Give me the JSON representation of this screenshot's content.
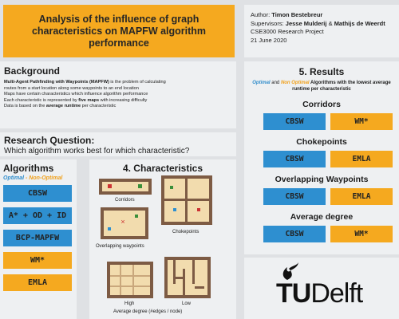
{
  "title": "Analysis of the influence of graph characteristics on MAPFW algorithm performance",
  "author": {
    "author_label": "Author:",
    "author_name": "Timon Bestebreur",
    "supervisors_label": "Supervisors:",
    "supervisor_1": "Jesse Mulderij",
    "amp": "&",
    "supervisor_2": "Mathijs de Weerdt",
    "project": "CSE3000 Research Project",
    "date": "21 June 2020"
  },
  "background": {
    "title": "Background",
    "line1_bold": "Multi-Agent Pathfinding with Waypoints (MAPFW)",
    "line1_rest": " is the problem of calculating",
    "line2": "routes from a start location along some waypoints to an end location",
    "line3": "Maps have certain characteristics which influence algorithm performance",
    "line4_pre": "Each characteristic is represented by ",
    "line4_bold": "five maps",
    "line4_post": " with increasing difficulty",
    "line5_pre": "Data is based on the ",
    "line5_bold": "average runtime",
    "line5_post": " per characteristic"
  },
  "research_question": {
    "title": "Research Question:",
    "question": "Which algorithm works best for which characteristic?"
  },
  "algorithms": {
    "title": "Algorithms",
    "optimal": "Optimal",
    "dash": " - ",
    "non_optimal": "Non-Optimal",
    "items": [
      {
        "label": "CBSW",
        "kind": "optimal"
      },
      {
        "label": "A* + OD + ID",
        "kind": "optimal"
      },
      {
        "label": "BCP-MAPFW",
        "kind": "optimal"
      },
      {
        "label": "WM*",
        "kind": "non-optimal"
      },
      {
        "label": "EMLA",
        "kind": "non-optimal"
      }
    ]
  },
  "characteristics": {
    "title": "4. Characteristics",
    "corridors": "Corridors",
    "chokepoints": "Chokepoints",
    "overlapping": "Overlapping waypoints",
    "high": "High",
    "low": "Low",
    "degree": "Average degree (#edges / node)"
  },
  "results": {
    "title": "5. Results",
    "desc_optimal": "Optimal",
    "desc_and": " and ",
    "desc_non_optimal": "Non Optimal",
    "desc_rest": " Algorithms with the lowest average runtime per characteristic",
    "categories": [
      {
        "name": "Corridors",
        "optimal": "CBSW",
        "non_optimal": "WM*"
      },
      {
        "name": "Chokepoints",
        "optimal": "CBSW",
        "non_optimal": "EMLA"
      },
      {
        "name": "Overlapping Waypoints",
        "optimal": "CBSW",
        "non_optimal": "EMLA"
      },
      {
        "name": "Average degree",
        "optimal": "CBSW",
        "non_optimal": "WM*"
      }
    ]
  },
  "logo": {
    "part1": "TU",
    "part2": "Delft"
  },
  "colors": {
    "accent_orange": "#f5a91f",
    "accent_blue": "#2e8fd0",
    "map_border": "#7d5b44",
    "map_floor": "#f2dcae"
  }
}
